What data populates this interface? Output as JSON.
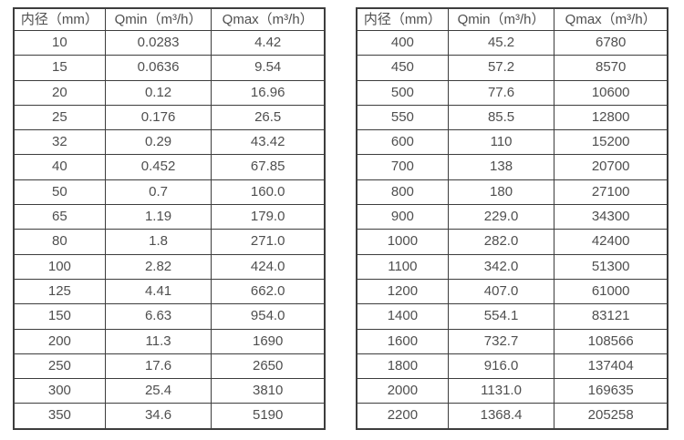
{
  "page": {
    "background_color": "#ffffff",
    "text_color": "#4f4f4f",
    "border_color": "#3d3d3d"
  },
  "columns": [
    "内径（mm）",
    "Qmin（m³/h）",
    "Qmax（m³/h）"
  ],
  "tables": [
    {
      "rows": [
        [
          "10",
          "0.0283",
          "4.42"
        ],
        [
          "15",
          "0.0636",
          "9.54"
        ],
        [
          "20",
          "0.12",
          "16.96"
        ],
        [
          "25",
          "0.176",
          "26.5"
        ],
        [
          "32",
          "0.29",
          "43.42"
        ],
        [
          "40",
          "0.452",
          "67.85"
        ],
        [
          "50",
          "0.7",
          "160.0"
        ],
        [
          "65",
          "1.19",
          "179.0"
        ],
        [
          "80",
          "1.8",
          "271.0"
        ],
        [
          "100",
          "2.82",
          "424.0"
        ],
        [
          "125",
          "4.41",
          "662.0"
        ],
        [
          "150",
          "6.63",
          "954.0"
        ],
        [
          "200",
          "11.3",
          "1690"
        ],
        [
          "250",
          "17.6",
          "2650"
        ],
        [
          "300",
          "25.4",
          "3810"
        ],
        [
          "350",
          "34.6",
          "5190"
        ]
      ]
    },
    {
      "rows": [
        [
          "400",
          "45.2",
          "6780"
        ],
        [
          "450",
          "57.2",
          "8570"
        ],
        [
          "500",
          "77.6",
          "10600"
        ],
        [
          "550",
          "85.5",
          "12800"
        ],
        [
          "600",
          "110",
          "15200"
        ],
        [
          "700",
          "138",
          "20700"
        ],
        [
          "800",
          "180",
          "27100"
        ],
        [
          "900",
          "229.0",
          "34300"
        ],
        [
          "1000",
          "282.0",
          "42400"
        ],
        [
          "1100",
          "342.0",
          "51300"
        ],
        [
          "1200",
          "407.0",
          "61000"
        ],
        [
          "1400",
          "554.1",
          "83121"
        ],
        [
          "1600",
          "732.7",
          "108566"
        ],
        [
          "1800",
          "916.0",
          "137404"
        ],
        [
          "2000",
          "1131.0",
          "169635"
        ],
        [
          "2200",
          "1368.4",
          "205258"
        ]
      ]
    }
  ]
}
